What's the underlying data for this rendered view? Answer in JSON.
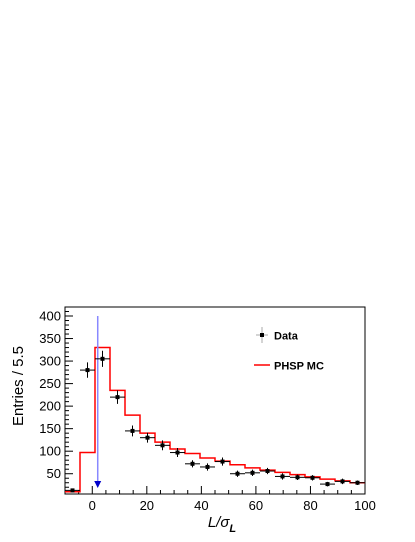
{
  "chart_data": {
    "type": "histogram",
    "xlabel_main": "L/σ",
    "xlabel_sub": "L",
    "ylabel": "Entries / 5.5",
    "xlim": [
      -10,
      100
    ],
    "ylim": [
      5,
      420
    ],
    "x_ticks": [
      0,
      20,
      40,
      60,
      80,
      100
    ],
    "y_ticks": [
      50,
      100,
      150,
      200,
      250,
      300,
      350,
      400
    ],
    "cut_line": {
      "x": 2,
      "y_top": 400,
      "color": "#8888ff",
      "arrow_color": "#0000cc"
    },
    "series": [
      {
        "name": "Data",
        "style": "points-with-errors",
        "color": "#000000",
        "points": [
          {
            "x": -7.25,
            "y": 13,
            "err": 4
          },
          {
            "x": -1.75,
            "y": 280,
            "err": 17
          },
          {
            "x": 3.75,
            "y": 305,
            "err": 18
          },
          {
            "x": 9.25,
            "y": 220,
            "err": 15
          },
          {
            "x": 14.75,
            "y": 145,
            "err": 12
          },
          {
            "x": 20.25,
            "y": 130,
            "err": 11
          },
          {
            "x": 25.75,
            "y": 113,
            "err": 11
          },
          {
            "x": 31.25,
            "y": 97,
            "err": 10
          },
          {
            "x": 36.75,
            "y": 72,
            "err": 8
          },
          {
            "x": 42.25,
            "y": 65,
            "err": 8
          },
          {
            "x": 47.75,
            "y": 77,
            "err": 9
          },
          {
            "x": 53.25,
            "y": 50,
            "err": 7
          },
          {
            "x": 58.75,
            "y": 52,
            "err": 7
          },
          {
            "x": 64.25,
            "y": 56,
            "err": 7
          },
          {
            "x": 69.75,
            "y": 44,
            "err": 7
          },
          {
            "x": 75.25,
            "y": 42,
            "err": 6
          },
          {
            "x": 80.75,
            "y": 41,
            "err": 6
          },
          {
            "x": 86.25,
            "y": 27,
            "err": 5
          },
          {
            "x": 91.75,
            "y": 33,
            "err": 6
          },
          {
            "x": 97.25,
            "y": 30,
            "err": 5
          }
        ]
      },
      {
        "name": "PHSP MC",
        "style": "step-histogram",
        "color": "#ff0000",
        "bin_edges": [
          -10,
          -4.5,
          1,
          6.5,
          12,
          17.5,
          23,
          28.5,
          34,
          39.5,
          45,
          50.5,
          56,
          61.5,
          67,
          72.5,
          78,
          83.5,
          89,
          94.5,
          100
        ],
        "values": [
          10,
          97,
          330,
          235,
          180,
          140,
          120,
          105,
          95,
          85,
          78,
          70,
          63,
          58,
          53,
          48,
          43,
          38,
          34,
          30
        ]
      }
    ],
    "legend": {
      "placement": "top-right",
      "entries": [
        {
          "label": "Data",
          "style": "points-with-errors",
          "color": "#000000"
        },
        {
          "label": "PHSP MC",
          "style": "line",
          "color": "#ff0000"
        }
      ]
    }
  }
}
